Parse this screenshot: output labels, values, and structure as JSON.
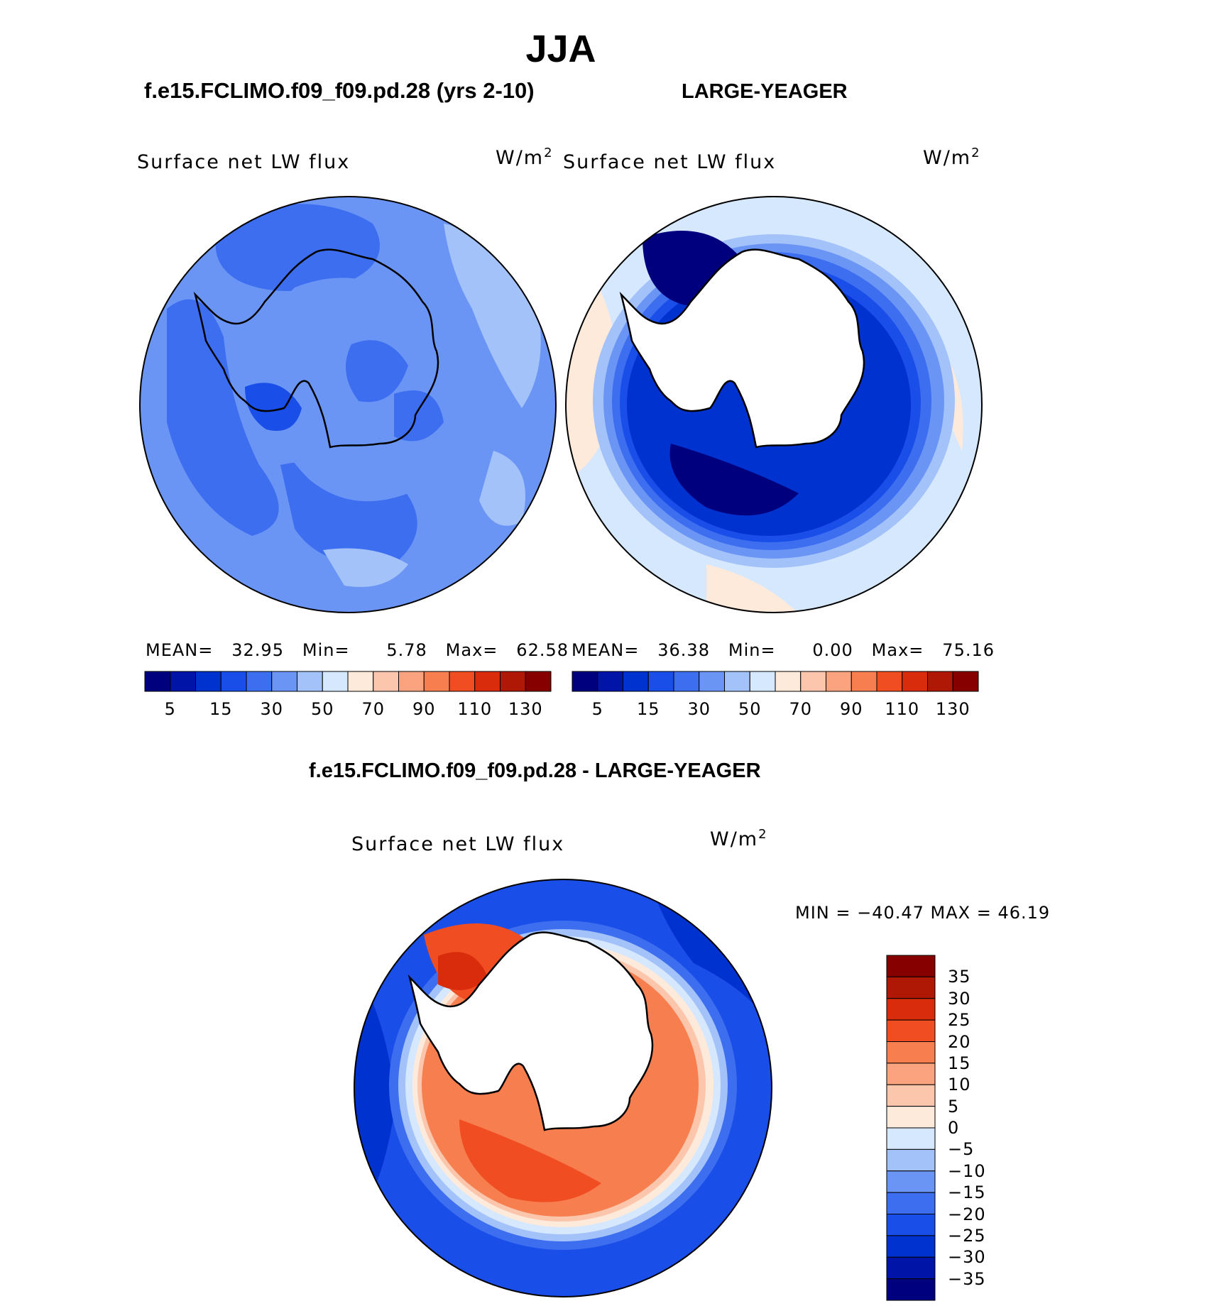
{
  "title": "JJA",
  "top_left": {
    "case_title": "f.e15.FCLIMO.f09_f09.pd.28 (yrs 2-10)",
    "plot_label": "Surface net LW flux",
    "units": "W/m",
    "units_sup": "2",
    "stats": {
      "mean_label": "MEAN=",
      "mean": "32.95",
      "min_label": "Min=",
      "min": "5.78",
      "max_label": "Max=",
      "max": "62.58"
    }
  },
  "top_right": {
    "case_title": "LARGE-YEAGER",
    "plot_label": "Surface net LW flux",
    "units": "W/m",
    "units_sup": "2",
    "stats": {
      "mean_label": "MEAN=",
      "mean": "36.38",
      "min_label": "Min=",
      "min": "0.00",
      "max_label": "Max=",
      "max": "75.16"
    }
  },
  "abs_colorbar": {
    "colors": [
      "#00007f",
      "#0014a8",
      "#0032d0",
      "#1a4ee8",
      "#3d6ef0",
      "#6b95f5",
      "#a3c2fa",
      "#d6e8fd",
      "#feeadb",
      "#fcc6ad",
      "#fba37e",
      "#f77e4f",
      "#f04e22",
      "#d82c0c",
      "#b01806",
      "#870000"
    ],
    "tick_labels": [
      "5",
      "15",
      "30",
      "50",
      "70",
      "90",
      "110",
      "130"
    ]
  },
  "diff": {
    "title": "f.e15.FCLIMO.f09_f09.pd.28 - LARGE-YEAGER",
    "plot_label": "Surface net LW flux",
    "units": "W/m",
    "units_sup": "2",
    "minmax": "MIN = −40.47 MAX =   46.19",
    "colorbar_colors_top_to_bottom": [
      "#870000",
      "#b01806",
      "#d82c0c",
      "#f04e22",
      "#f77e4f",
      "#fba37e",
      "#fcc6ad",
      "#feeadb",
      "#d6e8fd",
      "#a3c2fa",
      "#6b95f5",
      "#3d6ef0",
      "#1a4ee8",
      "#0032d0",
      "#0014a8",
      "#00007f"
    ],
    "tick_labels": [
      "35",
      "30",
      "25",
      "20",
      "15",
      "10",
      "5",
      "0",
      "−5",
      "−10",
      "−15",
      "−20",
      "−25",
      "−30",
      "−35"
    ]
  }
}
